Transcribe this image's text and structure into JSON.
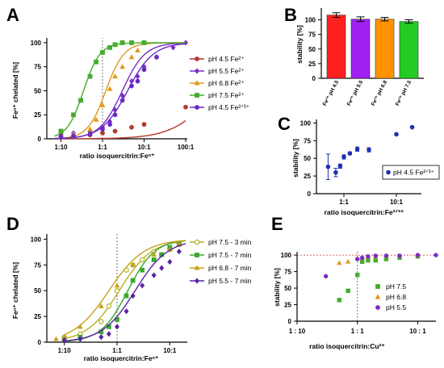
{
  "colors": {
    "ph45": "#b03a2e",
    "ph55": "#7b2cc9",
    "ph68": "#e09a18",
    "ph75": "#44ad2c",
    "ph45b": "#6a2bc4",
    "c_blue": "#1f2fb5",
    "d_ph75_3": "#b5b11d",
    "d_ph75_7": "#3aa830",
    "d_ph68_7": "#c8a11a",
    "d_ph55_7": "#5a22a6",
    "bar_red": "#ff2020",
    "bar_purple": "#a020f0",
    "bar_orange": "#ff9400",
    "bar_green": "#22cc22"
  },
  "panels": {
    "a": {
      "label": "A",
      "ylabel": "Feⁿ⁺ chelated [%]",
      "xlabel": "ratio isoquercitrin:Feⁿ⁺",
      "yticks": [
        "0",
        "25",
        "50",
        "75",
        "100"
      ],
      "xticks": [
        "1:10",
        "1:1",
        "10:1",
        "100:1"
      ],
      "legend": [
        "pH 4.5 Fe²⁺",
        "pH 5.5 Fe²⁺",
        "pH 6.8 Fe²⁺",
        "pH 7.5 Fe²⁺",
        "pH 4.5 Fe²ᐟ³⁺"
      ]
    },
    "b": {
      "label": "B",
      "ylabel": "stability [%]",
      "yticks": [
        "0",
        "25",
        "50",
        "75",
        "100"
      ],
      "categories": [
        "Fe²⁺ pH 4.5",
        "Fe²⁺ pH 5.5",
        "Fe²⁺ pH 6.8",
        "Fe²⁺ pH 7.5"
      ]
    },
    "c": {
      "label": "C",
      "ylabel": "stability [%]",
      "xlabel": "ratio isoquercitrin:Fe²ᐟ³⁺",
      "yticks": [
        "0",
        "25",
        "50",
        "75",
        "100"
      ],
      "xticks": [
        "1:1",
        "10:1"
      ],
      "legend": [
        "pH 4.5 Fe²ᐟ³⁺"
      ]
    },
    "d": {
      "label": "D",
      "ylabel": "Feⁿ⁺ chelated [%]",
      "xlabel": "ratio isoquercitrin:Feⁿ⁺",
      "yticks": [
        "0",
        "25",
        "50",
        "75",
        "100"
      ],
      "xticks": [
        "1:10",
        "1:1",
        "10:1"
      ],
      "legend": [
        "pH 7.5 - 3 min",
        "pH 7.5 - 7 min",
        "pH 6.8 - 7 min",
        "pH 5.5 - 7 min"
      ]
    },
    "e": {
      "label": "E",
      "ylabel": "stability [%]",
      "xlabel": "ratio isoquercitrin:Cu²⁺",
      "yticks": [
        "0",
        "25",
        "50",
        "75",
        "100"
      ],
      "xticks": [
        "1 : 10",
        "1 : 1",
        "10 : 1"
      ],
      "legend": [
        "pH 7.5",
        "pH 6.8",
        "pH 5.5"
      ]
    }
  },
  "chart_data": [
    {
      "panel": "A",
      "type": "scatter",
      "x_scale": "log",
      "xlim": [
        0.05,
        100
      ],
      "ylim": [
        0,
        105
      ],
      "series": [
        {
          "name": "pH 4.5 Fe²⁺",
          "x": [
            0.1,
            0.2,
            0.5,
            1,
            2,
            5,
            10,
            100
          ],
          "y": [
            5,
            3,
            4,
            6,
            8,
            12,
            15,
            33
          ]
        },
        {
          "name": "pH 5.5 Fe²⁺",
          "x": [
            0.1,
            0.2,
            0.5,
            1,
            1.5,
            2,
            3,
            5,
            7,
            10,
            20,
            50,
            100
          ],
          "y": [
            3,
            6,
            8,
            12,
            18,
            30,
            45,
            60,
            65,
            75,
            85,
            95,
            100
          ]
        },
        {
          "name": "pH 6.8 Fe²⁺",
          "x": [
            0.1,
            0.2,
            0.5,
            0.7,
            1,
            1.5,
            2,
            3,
            5,
            7,
            10
          ],
          "y": [
            2,
            5,
            10,
            20,
            35,
            52,
            65,
            75,
            85,
            92,
            100
          ]
        },
        {
          "name": "pH 7.5 Fe²⁺",
          "x": [
            0.1,
            0.2,
            0.3,
            0.5,
            0.7,
            1,
            1.5,
            2,
            3,
            5,
            10
          ],
          "y": [
            8,
            25,
            40,
            65,
            80,
            90,
            95,
            98,
            100,
            100,
            100
          ]
        },
        {
          "name": "pH 4.5 Fe²ᐟ³⁺",
          "x": [
            0.1,
            0.2,
            0.5,
            1,
            1.5,
            2,
            3,
            5,
            7,
            10,
            20
          ],
          "y": [
            2,
            3,
            5,
            10,
            15,
            25,
            40,
            55,
            60,
            72,
            85
          ]
        }
      ]
    },
    {
      "panel": "B",
      "type": "bar",
      "ylim": [
        0,
        120
      ],
      "categories": [
        "Fe²⁺ pH 4.5",
        "Fe²⁺ pH 5.5",
        "Fe²⁺ pH 6.8",
        "Fe²⁺ pH 7.5"
      ],
      "values": [
        108,
        101,
        101,
        97
      ],
      "errors": [
        4,
        4,
        3,
        3
      ]
    },
    {
      "panel": "C",
      "type": "scatter",
      "x_scale": "log",
      "xlim": [
        0.3,
        30
      ],
      "ylim": [
        0,
        105
      ],
      "series": [
        {
          "name": "pH 4.5 Fe²ᐟ³⁺",
          "x": [
            0.5,
            0.7,
            0.85,
            1,
            1.3,
            1.8,
            3,
            10,
            20
          ],
          "y": [
            38,
            30,
            39,
            52,
            57,
            63,
            62,
            84,
            94
          ],
          "errors": [
            18,
            6,
            3,
            3,
            2,
            3,
            3,
            0,
            0
          ]
        }
      ]
    },
    {
      "panel": "D",
      "type": "scatter",
      "x_scale": "log",
      "xlim": [
        0.05,
        20
      ],
      "ylim": [
        0,
        105
      ],
      "series": [
        {
          "name": "pH 7.5 - 3 min",
          "x": [
            0.1,
            0.2,
            0.5,
            0.7,
            1,
            1.5,
            2,
            3,
            5,
            7,
            10,
            15
          ],
          "y": [
            5,
            8,
            20,
            35,
            50,
            70,
            75,
            80,
            88,
            85,
            90,
            95
          ]
        },
        {
          "name": "pH 7.5 - 7 min",
          "x": [
            0.1,
            0.2,
            0.5,
            0.7,
            1,
            1.5,
            2,
            3,
            5,
            7,
            10,
            15
          ],
          "y": [
            3,
            5,
            10,
            15,
            22,
            45,
            60,
            70,
            80,
            85,
            92,
            95
          ]
        },
        {
          "name": "pH 6.8 - 7 min",
          "x": [
            0.07,
            0.1,
            0.2,
            0.5,
            1,
            2,
            5,
            10,
            15
          ],
          "y": [
            3,
            5,
            15,
            35,
            55,
            75,
            85,
            90,
            95
          ]
        },
        {
          "name": "pH 5.5 - 7 min",
          "x": [
            0.1,
            0.2,
            0.5,
            0.7,
            1,
            1.5,
            2,
            3,
            5,
            7,
            10,
            15
          ],
          "y": [
            2,
            3,
            5,
            8,
            15,
            30,
            45,
            55,
            65,
            72,
            78,
            88
          ]
        }
      ]
    },
    {
      "panel": "E",
      "type": "scatter",
      "x_scale": "log",
      "xlim": [
        0.1,
        20
      ],
      "ylim": [
        0,
        105
      ],
      "series": [
        {
          "name": "pH 7.5",
          "x": [
            0.5,
            0.7,
            1,
            1.2,
            1.5,
            2,
            3,
            5,
            10
          ],
          "y": [
            32,
            46,
            70,
            90,
            92,
            92,
            94,
            96,
            98
          ]
        },
        {
          "name": "pH 6.8",
          "x": [
            0.5,
            0.7,
            1,
            1.2,
            1.5,
            2,
            3,
            5,
            10
          ],
          "y": [
            88,
            90,
            95,
            96,
            98,
            98,
            99,
            99,
            100
          ]
        },
        {
          "name": "pH 5.5",
          "x": [
            0.3,
            1,
            1.2,
            1.5,
            2,
            3,
            5,
            10,
            20
          ],
          "y": [
            68,
            94,
            96,
            98,
            99,
            99,
            99,
            100,
            100
          ]
        }
      ]
    }
  ]
}
